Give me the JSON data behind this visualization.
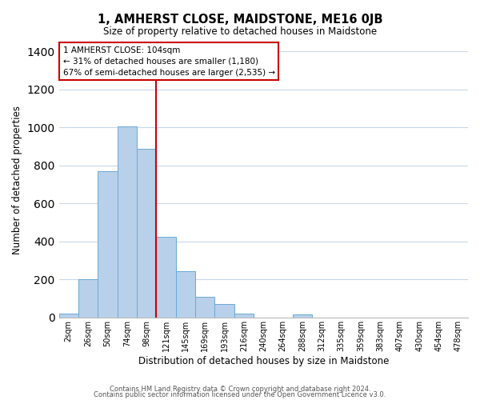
{
  "title": "1, AMHERST CLOSE, MAIDSTONE, ME16 0JB",
  "subtitle": "Size of property relative to detached houses in Maidstone",
  "xlabel": "Distribution of detached houses by size in Maidstone",
  "ylabel": "Number of detached properties",
  "bar_labels": [
    "2sqm",
    "26sqm",
    "50sqm",
    "74sqm",
    "98sqm",
    "121sqm",
    "145sqm",
    "169sqm",
    "193sqm",
    "216sqm",
    "240sqm",
    "264sqm",
    "288sqm",
    "312sqm",
    "335sqm",
    "359sqm",
    "383sqm",
    "407sqm",
    "430sqm",
    "454sqm",
    "478sqm"
  ],
  "bar_values": [
    20,
    200,
    770,
    1005,
    890,
    425,
    245,
    110,
    70,
    20,
    0,
    0,
    15,
    0,
    0,
    0,
    0,
    0,
    0,
    0,
    0
  ],
  "bar_color": "#b8d0ea",
  "bar_edge_color": "#6aaad4",
  "vline_x": 4.5,
  "vline_color": "#cc0000",
  "ylim": [
    0,
    1450
  ],
  "yticks": [
    0,
    200,
    400,
    600,
    800,
    1000,
    1200,
    1400
  ],
  "annotation_title": "1 AMHERST CLOSE: 104sqm",
  "annotation_line1": "← 31% of detached houses are smaller (1,180)",
  "annotation_line2": "67% of semi-detached houses are larger (2,535) →",
  "annotation_box_color": "#ffffff",
  "annotation_box_edge": "#cc0000",
  "footer1": "Contains HM Land Registry data © Crown copyright and database right 2024.",
  "footer2": "Contains public sector information licensed under the Open Government Licence v3.0.",
  "bg_color": "#ffffff",
  "grid_color": "#c8d8ec"
}
